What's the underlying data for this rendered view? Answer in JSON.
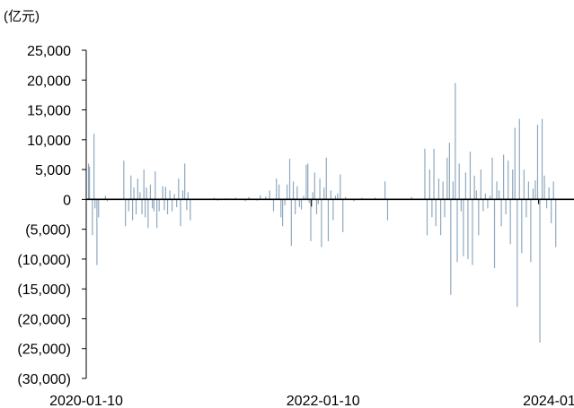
{
  "chart_data": {
    "type": "bar",
    "unit_label": "(亿元)",
    "ylim": [
      -30000,
      25000
    ],
    "y_ticks": [
      25000,
      20000,
      15000,
      10000,
      5000,
      0,
      -5000,
      -10000,
      -15000,
      -20000,
      -25000,
      -30000
    ],
    "y_tick_labels": [
      "25,000",
      "20,000",
      "15,000",
      "10,000",
      "5,000",
      "0",
      "(5,000)",
      "(10,000)",
      "(15,000)",
      "(20,000)",
      "(25,000)",
      "(30,000)"
    ],
    "x_range": [
      "2020-01-10",
      "2024-02-15"
    ],
    "x_ticks": [
      "2020-01-10",
      "2022-01-10",
      "2024-01-10"
    ],
    "x_tick_labels": [
      "2020-01-10",
      "2022-01-10",
      "2024-01-10"
    ],
    "bar_color": "#8FA9BF",
    "highlight_color": "#111111",
    "axis_color": "#000000",
    "series": [
      {
        "values": [
          {
            "x": "2020-01-17",
            "y": 6000
          },
          {
            "x": "2020-01-20",
            "y": 5500
          },
          {
            "x": "2020-01-29",
            "y": -6000
          },
          {
            "x": "2020-02-03",
            "y": 11000
          },
          {
            "x": "2020-02-06",
            "y": -1500
          },
          {
            "x": "2020-02-12",
            "y": -11000
          },
          {
            "x": "2020-02-17",
            "y": -3000
          },
          {
            "x": "2020-03-09",
            "y": 600
          },
          {
            "x": "2020-03-15",
            "y": -300
          },
          {
            "x": "2020-05-05",
            "y": 6500
          },
          {
            "x": "2020-05-10",
            "y": -4500
          },
          {
            "x": "2020-05-20",
            "y": -2000
          },
          {
            "x": "2020-05-27",
            "y": 4000
          },
          {
            "x": "2020-06-01",
            "y": -3500
          },
          {
            "x": "2020-06-05",
            "y": 2000
          },
          {
            "x": "2020-06-12",
            "y": -2500
          },
          {
            "x": "2020-06-17",
            "y": 3500
          },
          {
            "x": "2020-06-24",
            "y": 1200
          },
          {
            "x": "2020-06-30",
            "y": -2500
          },
          {
            "x": "2020-07-06",
            "y": 5000
          },
          {
            "x": "2020-07-10",
            "y": -3000
          },
          {
            "x": "2020-07-14",
            "y": 2000
          },
          {
            "x": "2020-07-19",
            "y": -4800
          },
          {
            "x": "2020-07-26",
            "y": 2500
          },
          {
            "x": "2020-08-01",
            "y": -1500
          },
          {
            "x": "2020-08-06",
            "y": -2000
          },
          {
            "x": "2020-08-10",
            "y": 4700
          },
          {
            "x": "2020-08-15",
            "y": -4800
          },
          {
            "x": "2020-08-22",
            "y": -2000
          },
          {
            "x": "2020-09-02",
            "y": 2200
          },
          {
            "x": "2020-09-07",
            "y": -1800
          },
          {
            "x": "2020-09-11",
            "y": 2100
          },
          {
            "x": "2020-09-17",
            "y": -2500
          },
          {
            "x": "2020-09-24",
            "y": 1500
          },
          {
            "x": "2020-10-01",
            "y": -2000
          },
          {
            "x": "2020-10-08",
            "y": 900
          },
          {
            "x": "2020-10-15",
            "y": -1300
          },
          {
            "x": "2020-10-21",
            "y": 3500
          },
          {
            "x": "2020-10-27",
            "y": -4500
          },
          {
            "x": "2020-11-03",
            "y": 1500
          },
          {
            "x": "2020-11-09",
            "y": 6000
          },
          {
            "x": "2020-11-15",
            "y": -1800
          },
          {
            "x": "2020-11-19",
            "y": 1200
          },
          {
            "x": "2020-11-26",
            "y": -3500
          },
          {
            "x": "2021-02-08",
            "y": 250
          },
          {
            "x": "2021-02-19",
            "y": -200
          },
          {
            "x": "2021-03-16",
            "y": 200
          },
          {
            "x": "2021-04-15",
            "y": 300
          },
          {
            "x": "2021-05-15",
            "y": -300
          },
          {
            "x": "2021-05-26",
            "y": 400
          },
          {
            "x": "2021-06-20",
            "y": -200
          },
          {
            "x": "2021-06-30",
            "y": 700
          },
          {
            "x": "2021-07-17",
            "y": 500
          },
          {
            "x": "2021-07-29",
            "y": 1500
          },
          {
            "x": "2021-08-10",
            "y": -2000
          },
          {
            "x": "2021-08-19",
            "y": 3500
          },
          {
            "x": "2021-08-27",
            "y": 2500
          },
          {
            "x": "2021-09-02",
            "y": -3000
          },
          {
            "x": "2021-09-07",
            "y": -4500
          },
          {
            "x": "2021-09-14",
            "y": -1000
          },
          {
            "x": "2021-09-21",
            "y": 2500
          },
          {
            "x": "2021-09-29",
            "y": 6800
          },
          {
            "x": "2021-10-04",
            "y": -7800
          },
          {
            "x": "2021-10-10",
            "y": 3000
          },
          {
            "x": "2021-10-16",
            "y": -2500
          },
          {
            "x": "2021-10-22",
            "y": 2200
          },
          {
            "x": "2021-10-29",
            "y": -1300
          },
          {
            "x": "2021-11-04",
            "y": -1700
          },
          {
            "x": "2021-11-11",
            "y": 600
          },
          {
            "x": "2021-11-19",
            "y": 5800
          },
          {
            "x": "2021-11-24",
            "y": 6000
          },
          {
            "x": "2021-11-28",
            "y": -600
          },
          {
            "x": "2021-12-03",
            "y": -7000
          },
          {
            "x": "2021-12-09",
            "y": 1200
          },
          {
            "x": "2021-12-15",
            "y": 4500
          },
          {
            "x": "2021-12-21",
            "y": -2500
          },
          {
            "x": "2021-12-26",
            "y": -800
          },
          {
            "x": "2021-12-31",
            "y": 3500
          },
          {
            "x": "2022-01-05",
            "y": -8000
          },
          {
            "x": "2022-01-13",
            "y": 2000
          },
          {
            "x": "2022-01-20",
            "y": 7000
          },
          {
            "x": "2022-01-26",
            "y": -7000
          },
          {
            "x": "2022-02-03",
            "y": 1500
          },
          {
            "x": "2022-02-10",
            "y": -3500
          },
          {
            "x": "2022-02-17",
            "y": 600
          },
          {
            "x": "2022-02-24",
            "y": 1000
          },
          {
            "x": "2022-03-04",
            "y": 4200
          },
          {
            "x": "2022-03-12",
            "y": -5500
          },
          {
            "x": "2022-03-20",
            "y": 400
          },
          {
            "x": "2022-04-15",
            "y": -300
          },
          {
            "x": "2022-05-10",
            "y": 250
          },
          {
            "x": "2022-06-20",
            "y": 300
          },
          {
            "x": "2022-07-20",
            "y": 3000
          },
          {
            "x": "2022-07-28",
            "y": -3500
          },
          {
            "x": "2022-10-10",
            "y": 400
          },
          {
            "x": "2022-11-20",
            "y": 8500
          },
          {
            "x": "2022-11-27",
            "y": -6000
          },
          {
            "x": "2022-12-05",
            "y": 5000
          },
          {
            "x": "2022-12-12",
            "y": -3000
          },
          {
            "x": "2022-12-18",
            "y": 8500
          },
          {
            "x": "2022-12-24",
            "y": -4500
          },
          {
            "x": "2023-01-02",
            "y": 3500
          },
          {
            "x": "2023-01-08",
            "y": -6000
          },
          {
            "x": "2023-01-15",
            "y": 3000
          },
          {
            "x": "2023-01-20",
            "y": -3000
          },
          {
            "x": "2023-01-28",
            "y": 7000
          },
          {
            "x": "2023-02-04",
            "y": 9500
          },
          {
            "x": "2023-02-08",
            "y": -16000
          },
          {
            "x": "2023-02-15",
            "y": 3000
          },
          {
            "x": "2023-02-22",
            "y": 19500
          },
          {
            "x": "2023-02-28",
            "y": -10500
          },
          {
            "x": "2023-03-06",
            "y": 6000
          },
          {
            "x": "2023-03-12",
            "y": -2000
          },
          {
            "x": "2023-03-19",
            "y": -9500
          },
          {
            "x": "2023-03-26",
            "y": 4500
          },
          {
            "x": "2023-04-02",
            "y": -10000
          },
          {
            "x": "2023-04-09",
            "y": 8000
          },
          {
            "x": "2023-04-16",
            "y": -11000
          },
          {
            "x": "2023-04-22",
            "y": 4000
          },
          {
            "x": "2023-04-28",
            "y": 1500
          },
          {
            "x": "2023-05-05",
            "y": -6000
          },
          {
            "x": "2023-05-12",
            "y": 5000
          },
          {
            "x": "2023-05-19",
            "y": -2000
          },
          {
            "x": "2023-05-26",
            "y": 1000
          },
          {
            "x": "2023-06-02",
            "y": -1500
          },
          {
            "x": "2023-06-09",
            "y": 600
          },
          {
            "x": "2023-06-16",
            "y": 7000
          },
          {
            "x": "2023-06-23",
            "y": -11500
          },
          {
            "x": "2023-06-30",
            "y": 3000
          },
          {
            "x": "2023-07-07",
            "y": 1500
          },
          {
            "x": "2023-07-14",
            "y": -4500
          },
          {
            "x": "2023-07-21",
            "y": 7500
          },
          {
            "x": "2023-07-28",
            "y": -2500
          },
          {
            "x": "2023-08-04",
            "y": 6500
          },
          {
            "x": "2023-08-11",
            "y": -7500
          },
          {
            "x": "2023-08-18",
            "y": 5000
          },
          {
            "x": "2023-08-25",
            "y": 12000
          },
          {
            "x": "2023-09-01",
            "y": -18000
          },
          {
            "x": "2023-09-08",
            "y": 13500
          },
          {
            "x": "2023-09-15",
            "y": -9000
          },
          {
            "x": "2023-09-22",
            "y": 5000
          },
          {
            "x": "2023-09-29",
            "y": -3000
          },
          {
            "x": "2023-10-06",
            "y": 3000
          },
          {
            "x": "2023-10-13",
            "y": -10500
          },
          {
            "x": "2023-10-20",
            "y": 1800
          },
          {
            "x": "2023-10-27",
            "y": 3200
          },
          {
            "x": "2023-11-03",
            "y": 12500
          },
          {
            "x": "2023-11-10",
            "y": -24000
          },
          {
            "x": "2023-11-17",
            "y": 13500
          },
          {
            "x": "2023-11-24",
            "y": 4000
          },
          {
            "x": "2023-12-01",
            "y": -1500
          },
          {
            "x": "2023-12-08",
            "y": 2000
          },
          {
            "x": "2023-12-15",
            "y": -4000
          },
          {
            "x": "2023-12-22",
            "y": 3000
          },
          {
            "x": "2023-12-29",
            "y": -8000
          }
        ]
      },
      {
        "values": [
          {
            "x": "2021-12-05",
            "y": -1200
          },
          {
            "x": "2023-11-06",
            "y": -800
          }
        ]
      }
    ]
  }
}
